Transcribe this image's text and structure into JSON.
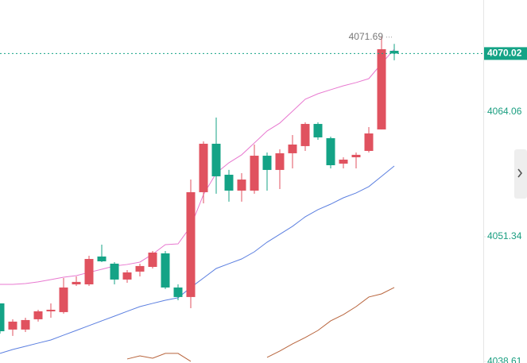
{
  "chart_data": {
    "type": "candlestick",
    "up_color": "#e0525f",
    "down_color": "#14a386",
    "axis_color": "#1a9e80",
    "ylim": [
      4038.46,
      4075.48
    ],
    "yticks": [
      4038.61,
      4051.34,
      4064.06
    ],
    "last_price": 4070.02,
    "high": 4071.69,
    "candles": [
      {
        "open": 4044.54,
        "high": 4044.54,
        "low": 4041.46,
        "close": 4041.7
      },
      {
        "open": 4041.87,
        "high": 4042.92,
        "low": 4041.22,
        "close": 4042.68
      },
      {
        "open": 4041.87,
        "high": 4043.08,
        "low": 4041.62,
        "close": 4042.84
      },
      {
        "open": 4042.92,
        "high": 4043.89,
        "low": 4042.68,
        "close": 4043.73
      },
      {
        "open": 4043.73,
        "high": 4044.54,
        "low": 4043.08,
        "close": 4043.89
      },
      {
        "open": 4043.65,
        "high": 4047.13,
        "low": 4043.49,
        "close": 4046.16
      },
      {
        "open": 4046.48,
        "high": 4047.29,
        "low": 4046.32,
        "close": 4046.73
      },
      {
        "open": 4046.48,
        "high": 4049.4,
        "low": 4046.32,
        "close": 4049.07
      },
      {
        "open": 4049.32,
        "high": 4050.53,
        "low": 4048.75,
        "close": 4048.83
      },
      {
        "open": 4048.59,
        "high": 4048.75,
        "low": 4046.48,
        "close": 4046.97
      },
      {
        "open": 4046.97,
        "high": 4047.94,
        "low": 4046.64,
        "close": 4047.7
      },
      {
        "open": 4047.78,
        "high": 4048.59,
        "low": 4047.29,
        "close": 4048.35
      },
      {
        "open": 4048.26,
        "high": 4049.88,
        "low": 4048.1,
        "close": 4049.72
      },
      {
        "open": 4049.64,
        "high": 4049.88,
        "low": 4046.0,
        "close": 4046.16
      },
      {
        "open": 4046.16,
        "high": 4046.48,
        "low": 4044.86,
        "close": 4045.19
      },
      {
        "open": 4045.19,
        "high": 4057.17,
        "low": 4044.05,
        "close": 4055.88
      },
      {
        "open": 4055.88,
        "high": 4061.06,
        "low": 4054.74,
        "close": 4060.82
      },
      {
        "open": 4060.82,
        "high": 4063.49,
        "low": 4055.72,
        "close": 4057.5
      },
      {
        "open": 4057.66,
        "high": 4058.15,
        "low": 4054.91,
        "close": 4056.04
      },
      {
        "open": 4056.04,
        "high": 4057.82,
        "low": 4054.91,
        "close": 4057.17
      },
      {
        "open": 4056.04,
        "high": 4060.74,
        "low": 4055.72,
        "close": 4059.6
      },
      {
        "open": 4059.6,
        "high": 4059.93,
        "low": 4056.04,
        "close": 4058.15
      },
      {
        "open": 4058.15,
        "high": 4060.25,
        "low": 4056.2,
        "close": 4059.85
      },
      {
        "open": 4059.85,
        "high": 4061.71,
        "low": 4058.31,
        "close": 4060.74
      },
      {
        "open": 4060.58,
        "high": 4063.01,
        "low": 4060.09,
        "close": 4062.84
      },
      {
        "open": 4062.84,
        "high": 4063.01,
        "low": 4061.22,
        "close": 4061.47
      },
      {
        "open": 4061.39,
        "high": 4061.55,
        "low": 4058.31,
        "close": 4058.63
      },
      {
        "open": 4058.79,
        "high": 4059.44,
        "low": 4058.31,
        "close": 4059.2
      },
      {
        "open": 4059.44,
        "high": 4059.93,
        "low": 4058.31,
        "close": 4059.69
      },
      {
        "open": 4060.09,
        "high": 4062.52,
        "low": 4059.93,
        "close": 4061.87
      },
      {
        "open": 4062.28,
        "high": 4071.69,
        "low": 4062.28,
        "close": 4070.46
      },
      {
        "open": 4070.3,
        "high": 4071.0,
        "low": 4069.33,
        "close": 4070.02
      }
    ],
    "lines": [
      {
        "color": "#e879d0",
        "values": [
          4046.48,
          4046.48,
          4046.56,
          4046.73,
          4046.97,
          4047.21,
          4047.37,
          4047.7,
          4048.02,
          4048.35,
          4048.51,
          4048.75,
          4049.56,
          4050.53,
          4050.61,
          4052.4,
          4055.64,
          4057.82,
          4058.88,
          4059.69,
          4060.9,
          4062.12,
          4062.93,
          4064.14,
          4065.36,
          4065.92,
          4066.33,
          4066.73,
          4067.06,
          4067.46,
          4069.0,
          4070.46
        ]
      },
      {
        "color": "#5b7fe0",
        "values": [
          4039.44,
          4039.84,
          4040.16,
          4040.49,
          4040.81,
          4041.3,
          4041.78,
          4042.27,
          4042.76,
          4043.24,
          4043.73,
          4044.21,
          4044.54,
          4044.86,
          4045.11,
          4046.16,
          4047.13,
          4048.1,
          4048.59,
          4049.07,
          4049.8,
          4050.78,
          4051.59,
          4052.4,
          4053.37,
          4054.1,
          4054.66,
          4055.31,
          4055.8,
          4056.45,
          4057.5,
          4058.55
        ]
      },
      {
        "color": "#b8643c",
        "values": [
          null,
          null,
          null,
          null,
          null,
          null,
          null,
          null,
          null,
          null,
          4038.87,
          4039.19,
          4038.95,
          4039.44,
          4039.44,
          4038.63,
          null,
          null,
          null,
          null,
          null,
          4039.03,
          4039.68,
          4040.41,
          4041.06,
          4041.78,
          4042.76,
          4043.4,
          4044.21,
          4045.19,
          4045.51,
          4046.16
        ]
      }
    ]
  }
}
